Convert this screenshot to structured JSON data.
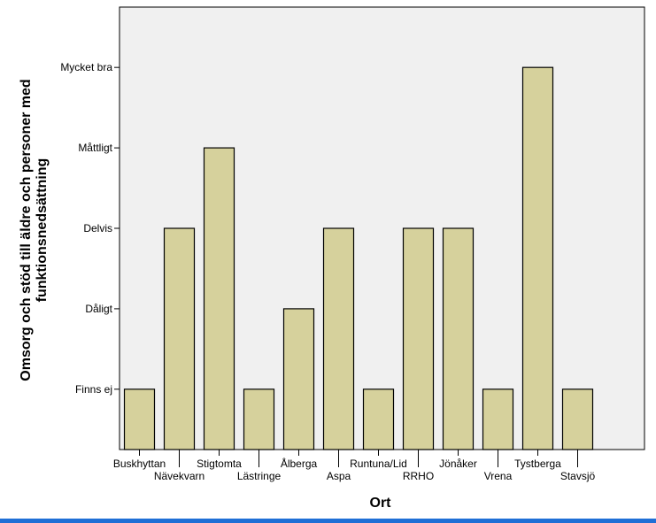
{
  "chart_data": {
    "type": "bar",
    "xlabel": "Ort",
    "ylabel_lines": [
      "Omsorg och stöd till äldre och personer med",
      "funktionsnedsättning"
    ],
    "categories": [
      "Buskhyttan",
      "Nävekvarn",
      "Stigtomta",
      "Lästringe",
      "Ålberga",
      "Aspa",
      "Runtuna/Lid",
      "RRHO",
      "Jönåker",
      "Vrena",
      "Tystberga",
      "Stavsjö"
    ],
    "y_levels": [
      "Finns ej",
      "Dåligt",
      "Delvis",
      "Måttligt",
      "Mycket bra"
    ],
    "values": [
      1,
      3,
      4,
      1,
      2,
      3,
      1,
      3,
      3,
      1,
      5,
      1
    ],
    "ylim": [
      0.25,
      5.75
    ],
    "grid": false,
    "colors": {
      "bar_fill": "#d6d19c",
      "bar_stroke": "#000000",
      "plot_background": "#f0f0f0",
      "frame_accent": "#1f6fd6"
    }
  }
}
